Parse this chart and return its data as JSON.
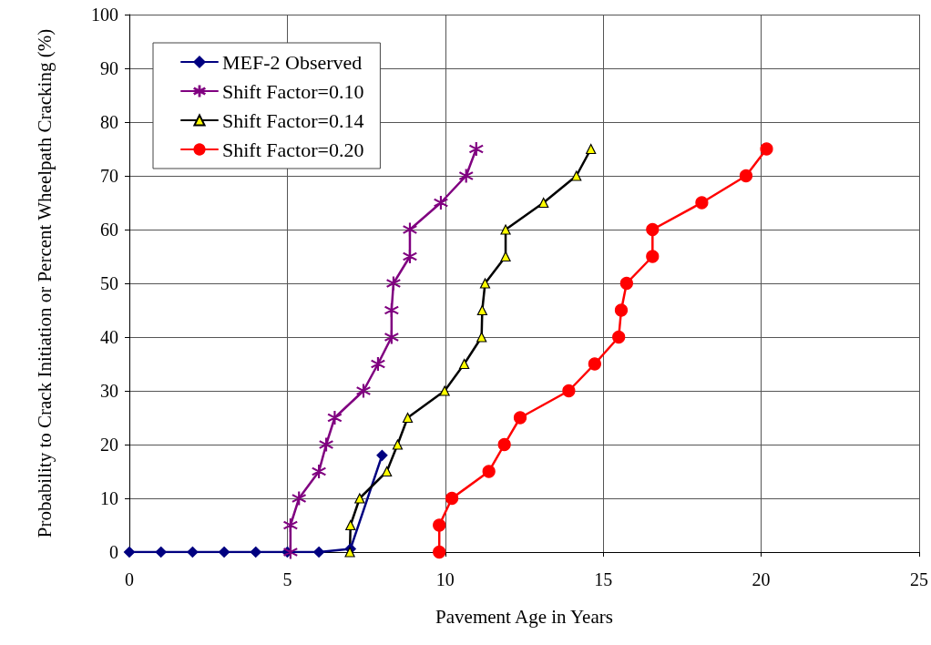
{
  "chart_data": {
    "type": "line",
    "xlabel": "Pavement Age in Years",
    "ylabel": "Probability to Crack Initiation or Percent Wheelpath Cracking (%)",
    "xlim": [
      0,
      25
    ],
    "xticks": [
      0,
      5,
      10,
      15,
      20,
      25
    ],
    "ylim": [
      0,
      100
    ],
    "yticks": [
      0,
      10,
      20,
      30,
      40,
      50,
      60,
      70,
      80,
      90,
      100
    ],
    "grid": true,
    "legend": "top left",
    "line_style": "solid",
    "series": [
      {
        "name": "MEF-2 Observed",
        "color": "#000080",
        "marker": "diamond",
        "x": [
          0,
          1,
          2,
          3,
          4,
          5,
          6,
          7,
          8
        ],
        "values": [
          0,
          0,
          0,
          0,
          0,
          0,
          0,
          0.6,
          18
        ]
      },
      {
        "name": "Shift Factor=0.10",
        "color": "#800080",
        "marker": "cross",
        "x": [
          5.1,
          5.1,
          5.37,
          6.0,
          6.23,
          6.5,
          7.41,
          7.87,
          8.3,
          8.3,
          8.36,
          8.88,
          8.88,
          9.86,
          10.66,
          10.98
        ],
        "values": [
          0,
          5,
          10,
          15,
          20,
          25,
          30,
          35,
          40,
          45,
          50,
          55,
          60,
          65,
          70,
          75
        ]
      },
      {
        "name": "Shift Factor=0.14",
        "color": "#000000",
        "marker": "triangle",
        "x": [
          6.98,
          7.0,
          7.29,
          8.15,
          8.49,
          8.81,
          9.98,
          10.6,
          11.15,
          11.17,
          11.26,
          11.91,
          11.91,
          13.11,
          14.15,
          14.61
        ],
        "values": [
          0,
          5,
          10,
          15,
          20,
          25,
          30,
          35,
          40,
          45,
          50,
          55,
          60,
          65,
          70,
          75
        ]
      },
      {
        "name": "Shift Factor=0.20",
        "color": "#ff0000",
        "marker": "circle",
        "x": [
          9.81,
          9.81,
          10.21,
          11.38,
          11.87,
          12.37,
          13.91,
          14.73,
          15.49,
          15.57,
          15.74,
          16.56,
          16.56,
          18.12,
          19.52,
          20.17
        ],
        "values": [
          0,
          5,
          10,
          15,
          20,
          25,
          30,
          35,
          40,
          45,
          50,
          55,
          60,
          65,
          70,
          75
        ]
      }
    ]
  }
}
